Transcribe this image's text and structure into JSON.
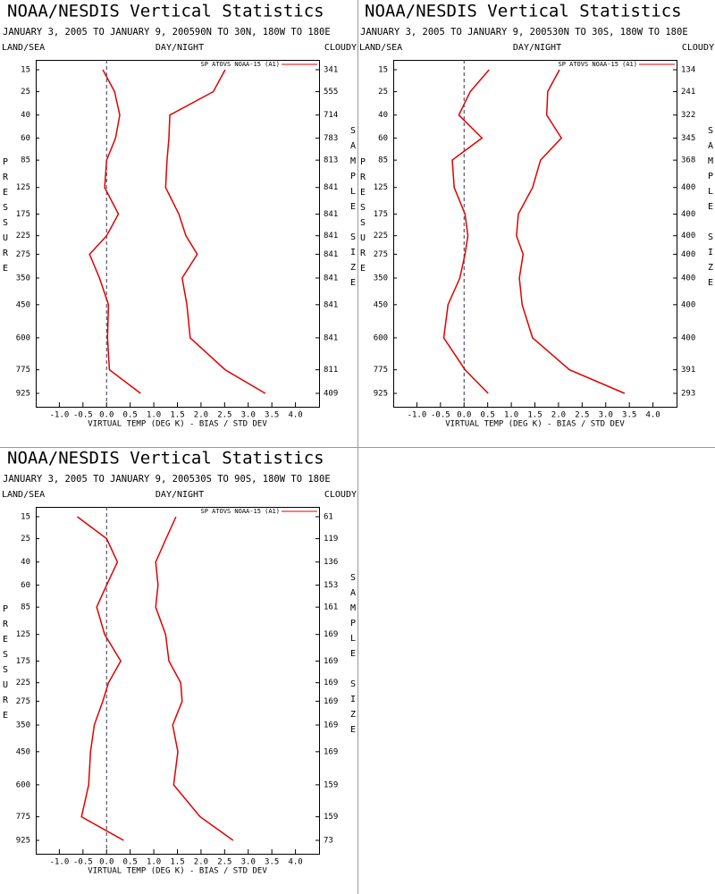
{
  "chart_data": [
    {
      "type": "line",
      "title": "NOAA/NESDIS Vertical Statistics",
      "subtitle": "JANUARY 3, 2005 TO JANUARY 9, 200590N TO 30N, 180W TO 180E",
      "land_sea_label": "LAND/SEA",
      "day_night_label": "DAY/NIGHT",
      "cloudy_label": "CLOUDY",
      "y_label": "PRESSURE",
      "y2_label": "SAMPLE SIZE",
      "x_label": "VIRTUAL TEMP (DEG K) - BIAS / STD DEV",
      "y": [
        15,
        25,
        40,
        60,
        85,
        125,
        175,
        225,
        275,
        350,
        450,
        600,
        775,
        925
      ],
      "ylim": [
        15,
        925
      ],
      "yticks": [
        15,
        25,
        40,
        60,
        85,
        125,
        175,
        225,
        275,
        350,
        450,
        600,
        775,
        925
      ],
      "xlim": [
        -1.5,
        4.5
      ],
      "xticks": [
        {
          "value": -1,
          "label": "-1.0"
        },
        -0.5,
        {
          "value": 0,
          "label": "0.0"
        },
        0.5,
        {
          "value": 1,
          "label": "1.0"
        },
        1.5,
        {
          "value": 2,
          "label": "2.0"
        },
        2.5,
        {
          "value": 3,
          "label": "3.0"
        },
        3.5,
        {
          "value": 4,
          "label": "4.0"
        }
      ],
      "series": [
        {
          "name": "SP ATOVS NOAA-15 (A1)",
          "color": "#e00000",
          "values": [
            -0.08,
            0.17,
            0.28,
            0.19,
            0.0,
            -0.04,
            0.25,
            0.0,
            -0.36,
            -0.15,
            0.04,
            0.02,
            0.06,
            0.72
          ]
        },
        {
          "color": "#e00000",
          "values": [
            2.51,
            2.26,
            1.34,
            1.32,
            1.28,
            1.25,
            1.53,
            1.68,
            1.92,
            1.6,
            1.7,
            1.77,
            2.51,
            3.36
          ]
        }
      ],
      "sample_size": [
        341,
        555,
        714,
        783,
        813,
        841,
        841,
        841,
        841,
        841,
        841,
        841,
        811,
        409
      ]
    },
    {
      "type": "line",
      "title": "NOAA/NESDIS Vertical Statistics",
      "subtitle": "JANUARY 3, 2005 TO JANUARY 9, 200530N TO 30S, 180W TO 180E",
      "land_sea_label": "LAND/SEA",
      "day_night_label": "DAY/NIGHT",
      "cloudy_label": "CLOUDY",
      "y_label": "PRESSURE",
      "y2_label": "SAMPLE SIZE",
      "x_label": "VIRTUAL TEMP (DEG K) - BIAS / STD DEV",
      "y": [
        15,
        25,
        40,
        60,
        85,
        125,
        175,
        225,
        275,
        350,
        450,
        600,
        775,
        925
      ],
      "ylim": [
        15,
        925
      ],
      "yticks": [
        15,
        25,
        40,
        60,
        85,
        125,
        175,
        225,
        275,
        350,
        450,
        600,
        775,
        925
      ],
      "xlim": [
        -1.5,
        4.5
      ],
      "xticks": [
        {
          "value": -1,
          "label": "-1.0"
        },
        -0.5,
        {
          "value": 0,
          "label": "0.0"
        },
        0.5,
        {
          "value": 1,
          "label": "1.0"
        },
        1.5,
        {
          "value": 2,
          "label": "2.0"
        },
        2.5,
        {
          "value": 3,
          "label": "3.0"
        },
        3.5,
        {
          "value": 4,
          "label": "4.0"
        }
      ],
      "series": [
        {
          "name": "SP ATOVS NOAA-15 (A1)",
          "color": "#e00000",
          "values": [
            0.53,
            0.13,
            -0.11,
            0.38,
            -0.25,
            -0.21,
            0.02,
            0.08,
            0.02,
            -0.09,
            -0.34,
            -0.43,
            0.02,
            0.51
          ]
        },
        {
          "color": "#e00000",
          "values": [
            2.02,
            1.77,
            1.75,
            2.06,
            1.62,
            1.45,
            1.15,
            1.11,
            1.25,
            1.17,
            1.23,
            1.45,
            2.23,
            3.4
          ]
        }
      ],
      "sample_size": [
        134,
        241,
        322,
        345,
        368,
        400,
        400,
        400,
        400,
        400,
        400,
        400,
        391,
        293
      ]
    },
    {
      "type": "line",
      "title": "NOAA/NESDIS Vertical Statistics",
      "subtitle": "JANUARY 3, 2005 TO JANUARY 9, 200530S TO 90S, 180W TO 180E",
      "land_sea_label": "LAND/SEA",
      "day_night_label": "DAY/NIGHT",
      "cloudy_label": "CLOUDY",
      "y_label": "PRESSURE",
      "y2_label": "SAMPLE SIZE",
      "x_label": "VIRTUAL TEMP (DEG K) - BIAS / STD DEV",
      "y": [
        15,
        25,
        40,
        60,
        85,
        125,
        175,
        225,
        275,
        350,
        450,
        600,
        775,
        925
      ],
      "ylim": [
        15,
        925
      ],
      "yticks": [
        15,
        25,
        40,
        60,
        85,
        125,
        175,
        225,
        275,
        350,
        450,
        600,
        775,
        925
      ],
      "xlim": [
        -1.5,
        4.5
      ],
      "xticks": [
        {
          "value": -1,
          "label": "-1.0"
        },
        -0.5,
        {
          "value": 0,
          "label": "0.0"
        },
        0.5,
        {
          "value": 1,
          "label": "1.0"
        },
        1.5,
        {
          "value": 2,
          "label": "2.0"
        },
        2.5,
        {
          "value": 3,
          "label": "3.0"
        },
        3.5,
        {
          "value": 4,
          "label": "4.0"
        }
      ],
      "series": [
        {
          "name": "SP ATOVS NOAA-15 (A1)",
          "color": "#e00000",
          "values": [
            -0.62,
            0.0,
            0.23,
            0.0,
            -0.21,
            -0.04,
            0.3,
            0.04,
            -0.08,
            -0.26,
            -0.34,
            -0.38,
            -0.53,
            0.36
          ]
        },
        {
          "color": "#e00000",
          "values": [
            1.47,
            1.26,
            1.04,
            1.09,
            1.04,
            1.25,
            1.32,
            1.57,
            1.6,
            1.4,
            1.51,
            1.42,
            1.98,
            2.68
          ]
        }
      ],
      "sample_size": [
        61,
        119,
        136,
        153,
        161,
        169,
        169,
        169,
        169,
        169,
        169,
        159,
        159,
        73
      ]
    }
  ]
}
